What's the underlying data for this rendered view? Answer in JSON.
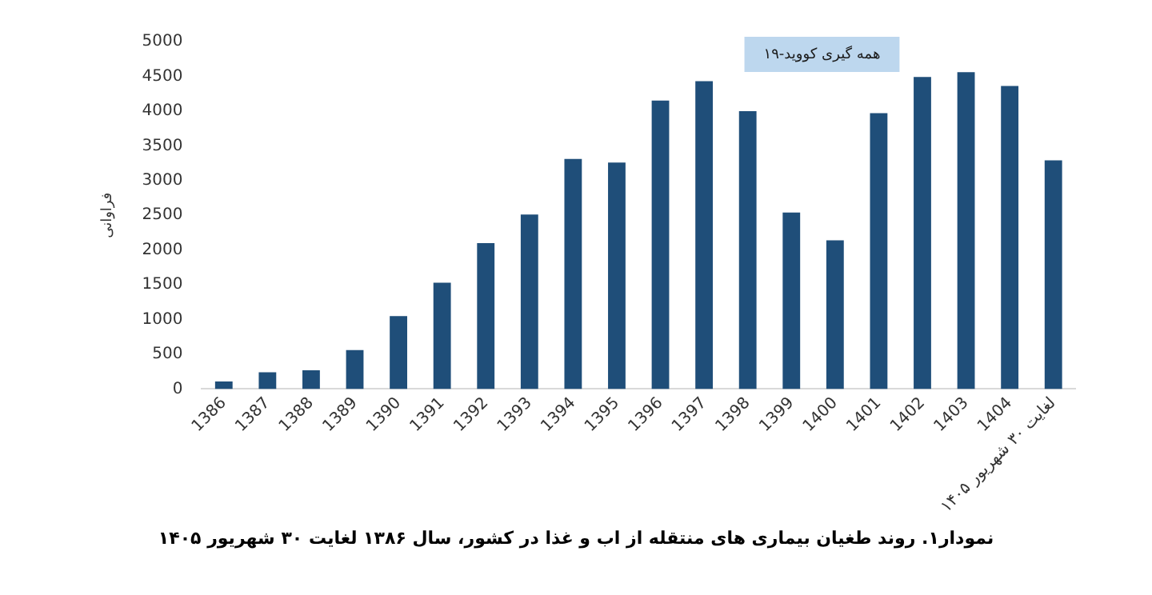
{
  "chart_data": {
    "type": "bar",
    "ylabel": "فراوانی",
    "categories": [
      "1386",
      "1387",
      "1388",
      "1389",
      "1390",
      "1391",
      "1392",
      "1393",
      "1394",
      "1395",
      "1396",
      "1397",
      "1398",
      "1399",
      "1400",
      "1401",
      "1402",
      "1403",
      "1404",
      "لغایت ۳۰ شهریور ۱۴۰۵"
    ],
    "values": [
      110,
      240,
      270,
      560,
      1050,
      1530,
      2100,
      2510,
      3310,
      3260,
      4150,
      4430,
      4000,
      2540,
      2140,
      3970,
      4490,
      4560,
      4360,
      3290
    ],
    "color": "#1f4e79",
    "ylim": [
      0,
      5000
    ],
    "yticks": [
      0,
      500,
      1000,
      1500,
      2000,
      2500,
      3000,
      3500,
      4000,
      4500,
      5000
    ],
    "grid": false,
    "legend": false,
    "annotations": [
      "همه گیری کووید-۱۹",
      "نمودار۱. روند طغیان بیماری های منتقله از اب و غذا در کشور، سال ۱۳۸۶ لغایت ۳۰ شهریور ۱۴۰۵"
    ]
  }
}
